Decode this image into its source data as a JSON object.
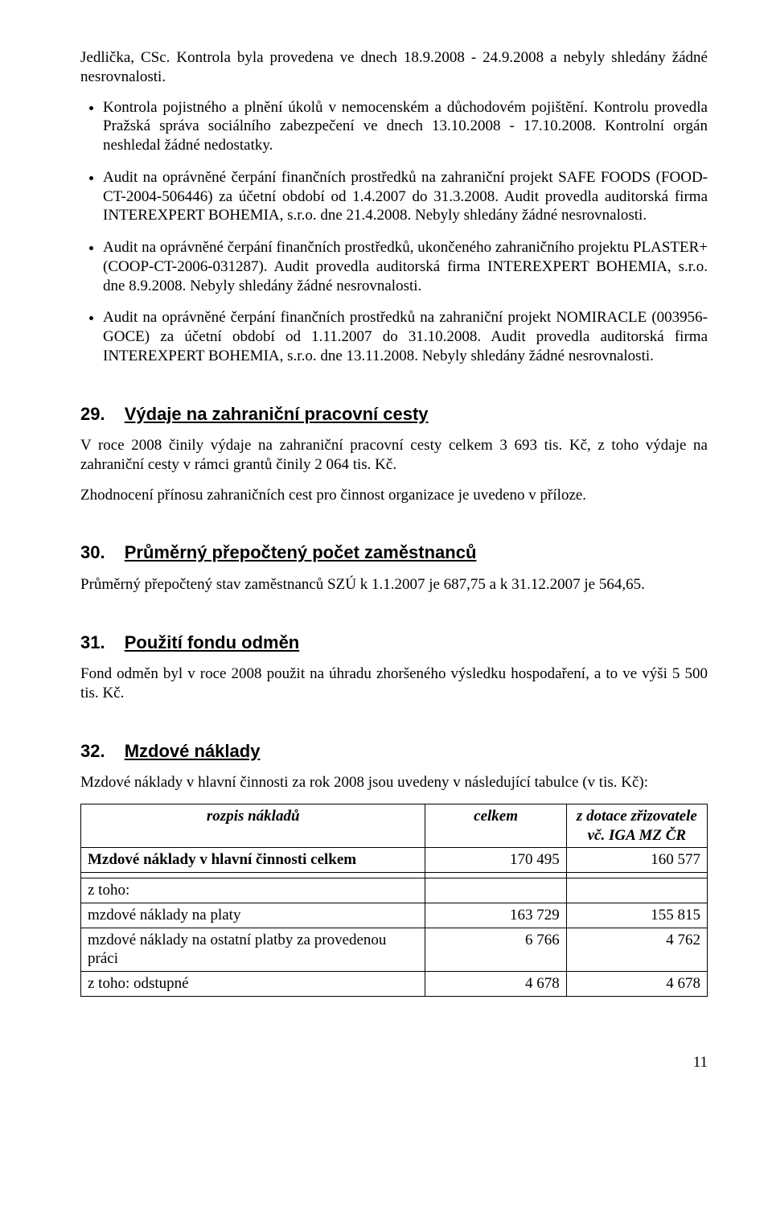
{
  "intro": {
    "p1": "Jedlička, CSc. Kontrola byla provedena ve dnech 18.9.2008 - 24.9.2008 a nebyly shledány žádné nesrovnalosti."
  },
  "bullets": [
    "Kontrola pojistného a plnění úkolů v nemocenském a důchodovém pojištění. Kontrolu provedla Pražská správa sociálního zabezpečení ve dnech 13.10.2008 - 17.10.2008. Kontrolní orgán neshledal žádné nedostatky.",
    "Audit na oprávněné čerpání finančních prostředků na zahraniční projekt SAFE FOODS (FOOD-CT-2004-506446) za účetní období od 1.4.2007 do 31.3.2008. Audit provedla auditorská firma INTEREXPERT BOHEMIA, s.r.o. dne 21.4.2008. Nebyly shledány žádné nesrovnalosti.",
    "Audit na oprávněné čerpání finančních prostředků, ukončeného zahraničního projektu PLASTER+ (COOP-CT-2006-031287). Audit provedla auditorská firma INTEREXPERT BOHEMIA, s.r.o. dne 8.9.2008. Nebyly shledány žádné nesrovnalosti.",
    "Audit na oprávněné čerpání finančních prostředků na zahraniční projekt NOMIRACLE (003956-GOCE) za účetní období od 1.11.2007 do 31.10.2008. Audit provedla auditorská firma INTEREXPERT BOHEMIA, s.r.o. dne 13.11.2008. Nebyly shledány žádné nesrovnalosti."
  ],
  "sections": {
    "s29": {
      "num": "29.",
      "title": "Výdaje na zahraniční pracovní cesty",
      "paras": [
        "V roce 2008 činily výdaje na zahraniční pracovní cesty celkem 3 693 tis. Kč, z toho výdaje na zahraniční cesty v rámci grantů činily 2 064 tis. Kč.",
        "Zhodnocení přínosu zahraničních cest pro činnost organizace je uvedeno v příloze."
      ]
    },
    "s30": {
      "num": "30.",
      "title": "Průměrný přepočtený počet zaměstnanců",
      "paras": [
        "Průměrný přepočtený stav zaměstnanců SZÚ k 1.1.2007 je 687,75 a k 31.12.2007 je 564,65."
      ]
    },
    "s31": {
      "num": "31.",
      "title": "Použití fondu odměn",
      "paras": [
        "Fond odměn byl v roce 2008 použit na úhradu zhoršeného výsledku hospodaření, a to ve výši 5 500 tis. Kč."
      ]
    },
    "s32": {
      "num": "32.",
      "title": "Mzdové náklady",
      "paras": [
        "Mzdové náklady v hlavní činnosti za rok 2008 jsou uvedeny v následující tabulce (v tis. Kč):"
      ]
    }
  },
  "table": {
    "header": {
      "c1": "rozpis nákladů",
      "c2": "celkem",
      "c3_line1": "z dotace zřizovatele",
      "c3_line2": "vč. IGA MZ ČR"
    },
    "rows": [
      {
        "label": "Mzdové náklady v hlavní činnosti celkem",
        "bold": true,
        "c2": "170 495",
        "c3": "160 577"
      },
      {
        "label": "",
        "c2": "",
        "c3": ""
      },
      {
        "label": "z toho:",
        "c2": "",
        "c3": ""
      },
      {
        "label": "mzdové náklady na platy",
        "c2": "163 729",
        "c3": "155 815"
      },
      {
        "label": "mzdové náklady na ostatní platby za provedenou práci",
        "c2": "6 766",
        "c3": "4 762"
      },
      {
        "label": "z toho: odstupné",
        "c2": "4 678",
        "c3": "4 678"
      }
    ]
  },
  "page_number": "11"
}
